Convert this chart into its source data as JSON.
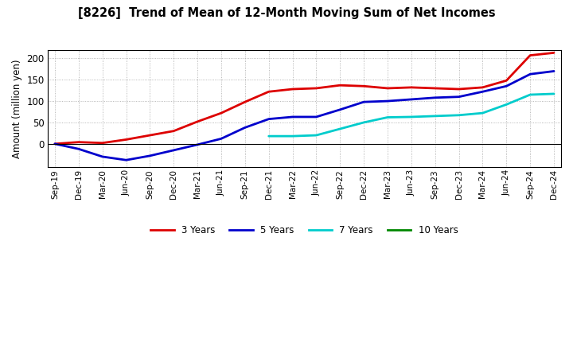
{
  "title": "[8226]  Trend of Mean of 12-Month Moving Sum of Net Incomes",
  "ylabel": "Amount (million yen)",
  "background_color": "#ffffff",
  "grid_color": "#999999",
  "ylim": [
    -55,
    220
  ],
  "yticks": [
    0,
    50,
    100,
    150,
    200
  ],
  "x_labels": [
    "Sep-19",
    "Dec-19",
    "Mar-20",
    "Jun-20",
    "Sep-20",
    "Dec-20",
    "Mar-21",
    "Jun-21",
    "Sep-21",
    "Dec-21",
    "Mar-22",
    "Jun-22",
    "Sep-22",
    "Dec-22",
    "Mar-23",
    "Jun-23",
    "Sep-23",
    "Dec-23",
    "Mar-24",
    "Jun-24",
    "Sep-24",
    "Dec-24"
  ],
  "series": {
    "3 Years": {
      "color": "#dd0000",
      "data_x": [
        0,
        1,
        2,
        3,
        4,
        5,
        6,
        7,
        8,
        9,
        10,
        11,
        12,
        13,
        14,
        15,
        16,
        17,
        18,
        19,
        20,
        21
      ],
      "data_y": [
        0,
        4,
        2,
        10,
        20,
        30,
        52,
        72,
        98,
        122,
        128,
        130,
        137,
        135,
        130,
        132,
        130,
        128,
        132,
        148,
        207,
        213
      ]
    },
    "5 Years": {
      "color": "#0000cc",
      "data_x": [
        0,
        1,
        2,
        3,
        4,
        5,
        6,
        7,
        8,
        9,
        10,
        11,
        12,
        13,
        14,
        15,
        16,
        17,
        18,
        19,
        20,
        21
      ],
      "data_y": [
        0,
        -12,
        -30,
        -38,
        -28,
        -15,
        -2,
        12,
        38,
        58,
        63,
        63,
        80,
        98,
        100,
        104,
        108,
        110,
        122,
        135,
        163,
        170
      ]
    },
    "7 Years": {
      "color": "#00cccc",
      "data_x": [
        9,
        10,
        11,
        12,
        13,
        14,
        15,
        16,
        17,
        18,
        19,
        20,
        21
      ],
      "data_y": [
        18,
        18,
        20,
        35,
        50,
        62,
        63,
        65,
        67,
        72,
        92,
        115,
        117
      ]
    },
    "10 Years": {
      "color": "#008800",
      "data_x": [],
      "data_y": []
    }
  }
}
